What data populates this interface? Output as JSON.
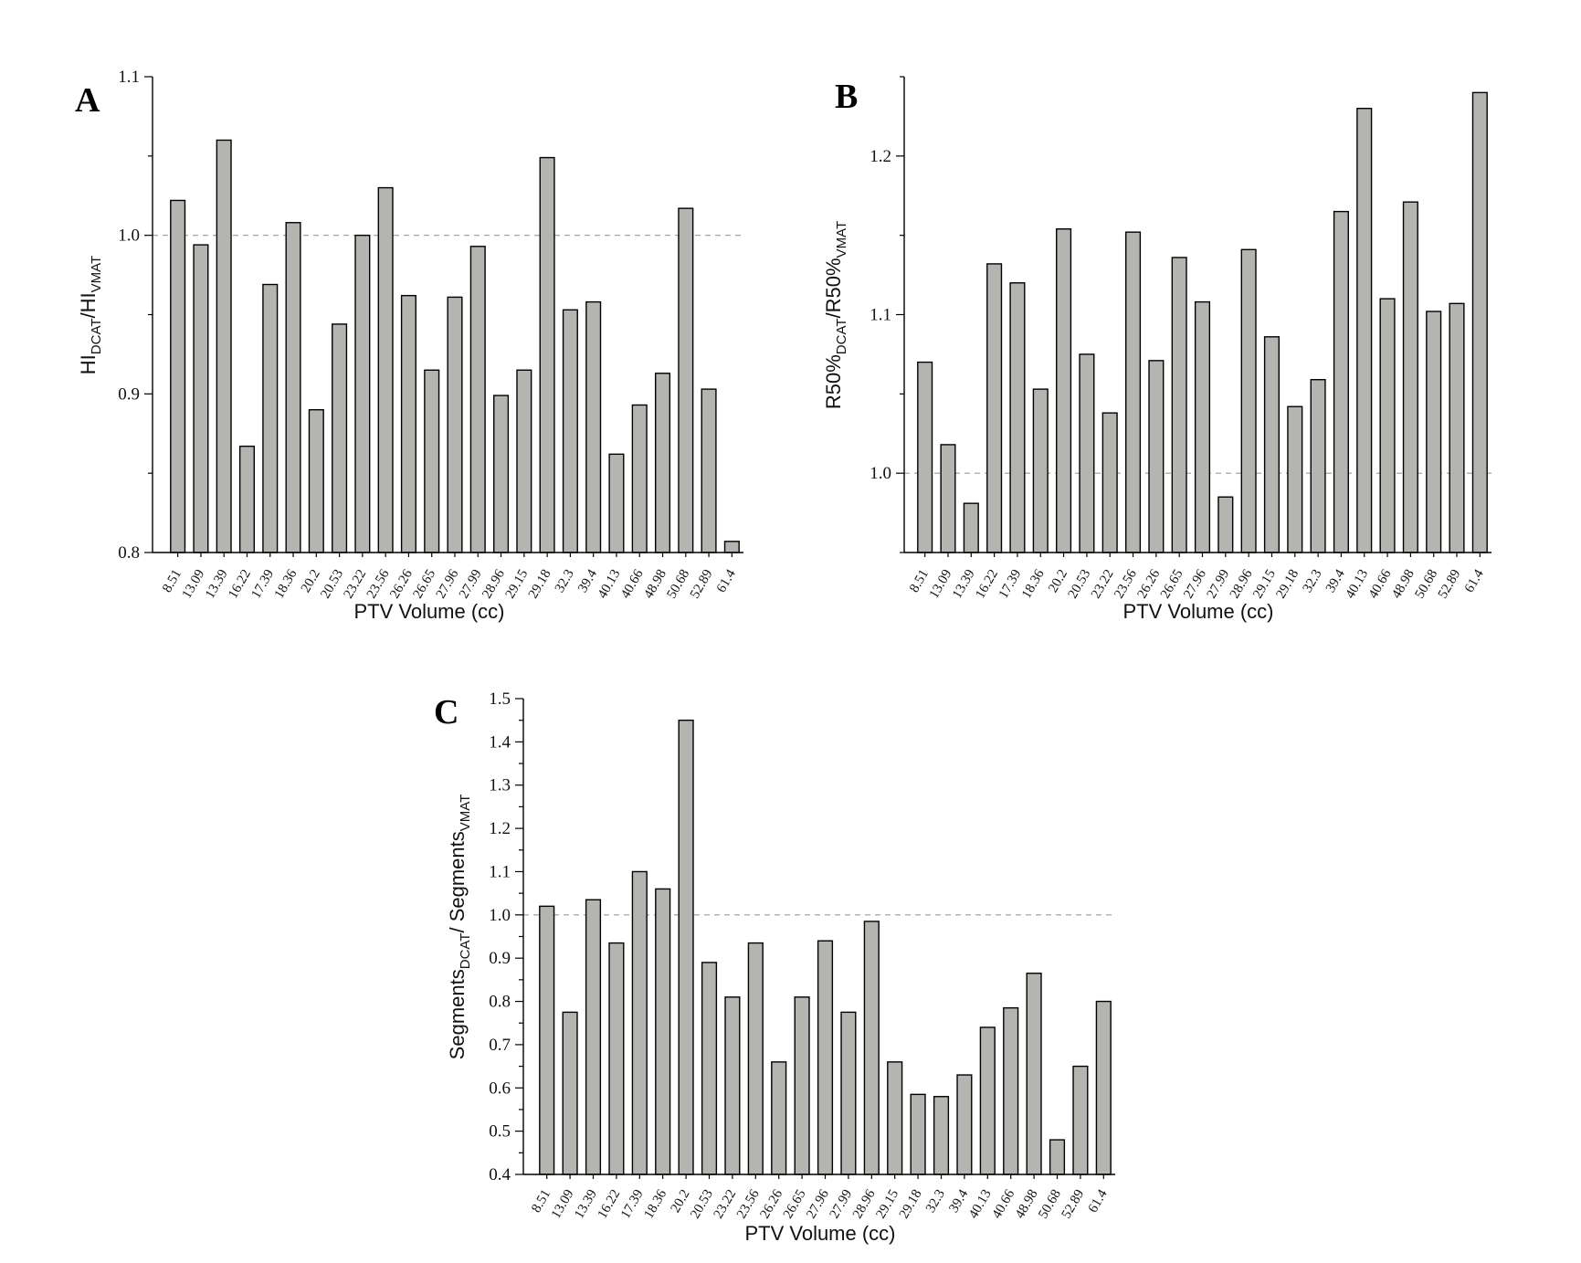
{
  "chart_data": [
    {
      "panel": "A",
      "type": "bar",
      "xlabel": "PTV Volume (cc)",
      "ylabel_main": "HI",
      "ylabel_sub1": "DCAT",
      "ylabel_mid": "/HI",
      "ylabel_sub2": "VMAT",
      "ylabel_tail": "",
      "categories": [
        "8.51",
        "13.09",
        "13.39",
        "16.22",
        "17.39",
        "18.36",
        "20.2",
        "20.53",
        "23.22",
        "23.56",
        "26.26",
        "26.65",
        "27.96",
        "27.99",
        "28.96",
        "29.15",
        "29.18",
        "32.3",
        "39.4",
        "40.13",
        "40.66",
        "48.98",
        "50.68",
        "52.89",
        "61.4"
      ],
      "values": [
        1.022,
        0.994,
        1.06,
        0.867,
        0.969,
        1.008,
        0.89,
        0.944,
        1.0,
        1.03,
        0.962,
        0.915,
        0.961,
        0.993,
        0.899,
        0.915,
        1.049,
        0.953,
        0.958,
        0.862,
        0.893,
        0.913,
        1.017,
        0.903,
        0.807
      ],
      "ylim": [
        0.8,
        1.1
      ],
      "yticks": [
        0.8,
        0.9,
        1.0,
        1.1
      ],
      "ytick_labels": [
        "0.8",
        "0.9",
        "1.0",
        "1.1"
      ],
      "reference_line": 1.0,
      "bar_color": "#b4b4b0"
    },
    {
      "panel": "B",
      "type": "bar",
      "xlabel": "PTV Volume (cc)",
      "ylabel_main": "R50%",
      "ylabel_sub1": "DCAT",
      "ylabel_mid": "/R50%",
      "ylabel_sub2": "VMAT",
      "ylabel_tail": "",
      "categories": [
        "8.51",
        "13.09",
        "13.39",
        "16.22",
        "17.39",
        "18.36",
        "20.2",
        "20.53",
        "23.22",
        "23.56",
        "26.26",
        "26.65",
        "27.96",
        "27.99",
        "28.96",
        "29.15",
        "29.18",
        "32.3",
        "39.4",
        "40.13",
        "40.66",
        "48.98",
        "50.68",
        "52.89",
        "61.4"
      ],
      "values": [
        1.07,
        1.018,
        0.981,
        1.132,
        1.12,
        1.053,
        1.154,
        1.075,
        1.038,
        1.152,
        1.071,
        1.136,
        1.108,
        0.985,
        1.141,
        1.086,
        1.042,
        1.059,
        1.165,
        1.23,
        1.11,
        1.171,
        1.102,
        1.107,
        1.24
      ],
      "ylim": [
        0.95,
        1.25
      ],
      "yticks": [
        1.0,
        1.1,
        1.2
      ],
      "ytick_labels": [
        "1.0",
        "1.1",
        "1.2"
      ],
      "reference_line": 1.0,
      "bar_color": "#b4b4b0"
    },
    {
      "panel": "C",
      "type": "bar",
      "xlabel": "PTV Volume (cc)",
      "ylabel_main": "Segments",
      "ylabel_sub1": "DCAT",
      "ylabel_mid": "/ Segments",
      "ylabel_sub2": "VMAT",
      "ylabel_tail": "",
      "categories": [
        "8.51",
        "13.09",
        "13.39",
        "16.22",
        "17.39",
        "18.36",
        "20.2",
        "20.53",
        "23.22",
        "23.56",
        "26.26",
        "26.65",
        "27.96",
        "27.99",
        "28.96",
        "29.15",
        "29.18",
        "32.3",
        "39.4",
        "40.13",
        "40.66",
        "48.98",
        "50.68",
        "52.89",
        "61.4"
      ],
      "values": [
        1.02,
        0.775,
        1.035,
        0.935,
        1.1,
        1.06,
        1.45,
        0.89,
        0.81,
        0.935,
        0.66,
        0.81,
        0.94,
        0.775,
        0.985,
        0.66,
        0.585,
        0.58,
        0.63,
        0.74,
        0.785,
        0.865,
        0.48,
        0.65,
        0.8
      ],
      "ylim": [
        0.4,
        1.5
      ],
      "yticks": [
        0.4,
        0.5,
        0.6,
        0.7,
        0.8,
        0.9,
        1.0,
        1.1,
        1.2,
        1.3,
        1.4,
        1.5
      ],
      "ytick_labels": [
        "0.4",
        "0.5",
        "0.6",
        "0.7",
        "0.8",
        "0.9",
        "1.0",
        "1.1",
        "1.2",
        "1.3",
        "1.4",
        "1.5"
      ],
      "reference_line": 1.0,
      "bar_color": "#b4b4b0"
    }
  ]
}
